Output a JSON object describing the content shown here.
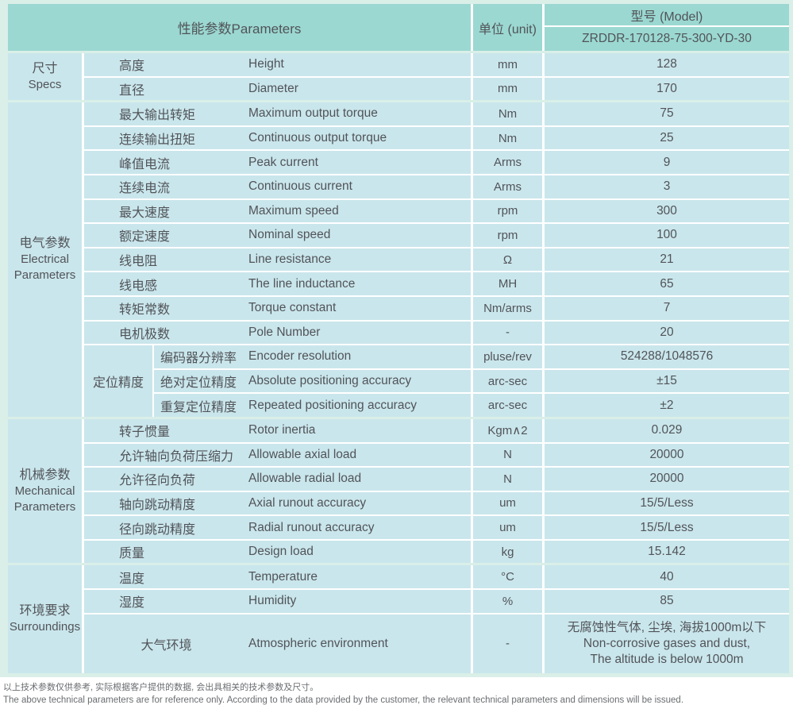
{
  "header": {
    "parameters": "性能参数Parameters",
    "unit": "单位 (unit)",
    "model_label": "型号 (Model)",
    "model_value": "ZRDDR-170128-75-300-YD-30"
  },
  "sections": [
    {
      "label_zh": "尺寸",
      "label_en": "Specs",
      "rows": [
        {
          "zh": "高度",
          "en": "Height",
          "unit": "mm",
          "value": "128"
        },
        {
          "zh": "直径",
          "en": "Diameter",
          "unit": "mm",
          "value": "170"
        }
      ]
    },
    {
      "label_zh": "电气参数",
      "label_en": "Electrical Parameters",
      "rows": [
        {
          "zh": "最大输出转矩",
          "en": "Maximum output torque",
          "unit": "Nm",
          "value": "75"
        },
        {
          "zh": "连续输出扭矩",
          "en": "Continuous output torque",
          "unit": "Nm",
          "value": "25"
        },
        {
          "zh": "峰值电流",
          "en": "Peak current",
          "unit": "Arms",
          "value": "9"
        },
        {
          "zh": "连续电流",
          "en": "Continuous current",
          "unit": "Arms",
          "value": "3"
        },
        {
          "zh": "最大速度",
          "en": "Maximum speed",
          "unit": "rpm",
          "value": "300"
        },
        {
          "zh": "额定速度",
          "en": "Nominal speed",
          "unit": "rpm",
          "value": "100"
        },
        {
          "zh": "线电阻",
          "en": "Line resistance",
          "unit": "Ω",
          "value": "21"
        },
        {
          "zh": "线电感",
          "en": "The line inductance",
          "unit": "MH",
          "value": "65"
        },
        {
          "zh": "转矩常数",
          "en": "Torque constant",
          "unit": "Nm/arms",
          "value": "7"
        },
        {
          "zh": "电机极数",
          "en": "Pole Number",
          "unit": "-",
          "value": "20"
        }
      ],
      "subgroup": {
        "label": "定位精度",
        "rows": [
          {
            "zh": "编码器分辨率",
            "en": "Encoder resolution",
            "unit": "pluse/rev",
            "value": "524288/1048576"
          },
          {
            "zh": "绝对定位精度",
            "en": "Absolute positioning accuracy",
            "unit": "arc-sec",
            "value": "±15"
          },
          {
            "zh": "重复定位精度",
            "en": "Repeated positioning accuracy",
            "unit": "arc-sec",
            "value": "±2"
          }
        ]
      }
    },
    {
      "label_zh": "机械参数",
      "label_en": "Mechanical Parameters",
      "rows": [
        {
          "zh": "转子惯量",
          "en": "Rotor inertia",
          "unit": "Kgm∧2",
          "value": "0.029"
        },
        {
          "zh": "允许轴向负荷压缩力",
          "en": "Allowable axial load",
          "unit": "N",
          "value": "20000"
        },
        {
          "zh": "允许径向负荷",
          "en": "Allowable radial load",
          "unit": "N",
          "value": "20000"
        },
        {
          "zh": "轴向跳动精度",
          "en": "Axial runout accuracy",
          "unit": "um",
          "value": "15/5/Less"
        },
        {
          "zh": "径向跳动精度",
          "en": "Radial runout accuracy",
          "unit": "um",
          "value": "15/5/Less"
        },
        {
          "zh": "质量",
          "en": "Design load",
          "unit": "kg",
          "value": "15.142"
        }
      ]
    },
    {
      "label_zh": "环境要求",
      "label_en": "Surroundings",
      "rows": [
        {
          "zh": "温度",
          "en": "Temperature",
          "unit": "°C",
          "value": "40"
        },
        {
          "zh": "湿度",
          "en": "Humidity",
          "unit": "%",
          "value": "85"
        }
      ],
      "tall_row": {
        "zh": "大气环境",
        "en": "Atmospheric environment",
        "unit": "-",
        "value_lines": [
          "无腐蚀性气体, 尘埃, 海拔1000m以下",
          "Non-corrosive gases and dust,",
          "The altitude is below 1000m"
        ]
      }
    }
  ],
  "footer": {
    "line_zh": "以上技术参数仅供参考, 实际根据客户提供的数据, 会出具相关的技术参数及尺寸。",
    "line_en": "The above technical parameters are for reference only. According to the data provided by the customer, the relevant technical parameters and dimensions will be issued."
  },
  "colors": {
    "header_teal": "#9bd8d1",
    "cell_blue": "#c9e6ec",
    "page_pale_green": "#d9efe8",
    "divider_white": "#ffffff",
    "text": "#515458"
  }
}
